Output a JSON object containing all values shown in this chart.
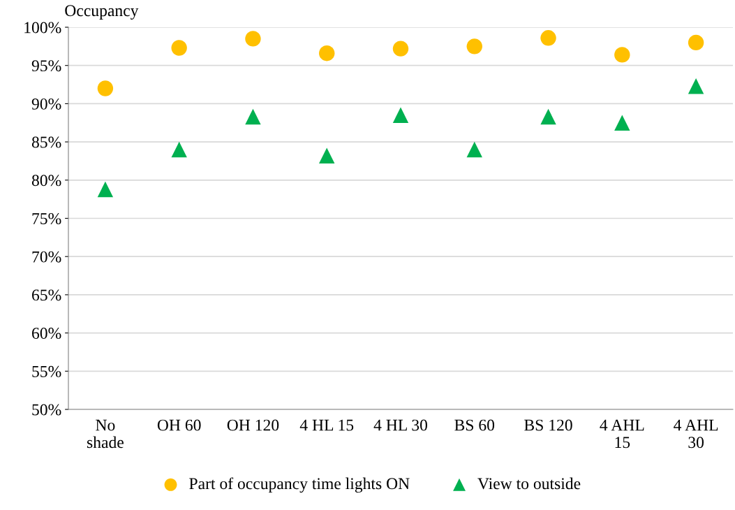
{
  "chart_data": {
    "type": "scatter",
    "ylabel": "Occupancy",
    "categories": [
      "No\nshade",
      "OH 60",
      "OH 120",
      "4 HL 15",
      "4 HL 30",
      "BS 60",
      "BS 120",
      "4 AHL\n15",
      "4 AHL\n30"
    ],
    "series": [
      {
        "name": "Part of occupancy time lights ON",
        "color": "#ffc000",
        "marker": "circle",
        "values": [
          92.0,
          97.3,
          98.5,
          96.6,
          97.2,
          97.5,
          98.6,
          96.4,
          98.0
        ]
      },
      {
        "name": "View to outside",
        "color": "#00b050",
        "marker": "triangle",
        "values": [
          78.8,
          84.0,
          88.3,
          83.2,
          88.5,
          84.0,
          88.3,
          87.5,
          92.3
        ]
      }
    ],
    "ylim": [
      50,
      100
    ],
    "yticks": [
      {
        "value": 50,
        "label": "50%"
      },
      {
        "value": 55,
        "label": "55%"
      },
      {
        "value": 60,
        "label": "60%"
      },
      {
        "value": 65,
        "label": "65%"
      },
      {
        "value": 70,
        "label": "70%"
      },
      {
        "value": 75,
        "label": "75%"
      },
      {
        "value": 80,
        "label": "80%"
      },
      {
        "value": 85,
        "label": "85%"
      },
      {
        "value": 90,
        "label": "90%"
      },
      {
        "value": 95,
        "label": "95%"
      },
      {
        "value": 100,
        "label": "100%"
      }
    ],
    "grid": "y",
    "legend": "bottom"
  }
}
